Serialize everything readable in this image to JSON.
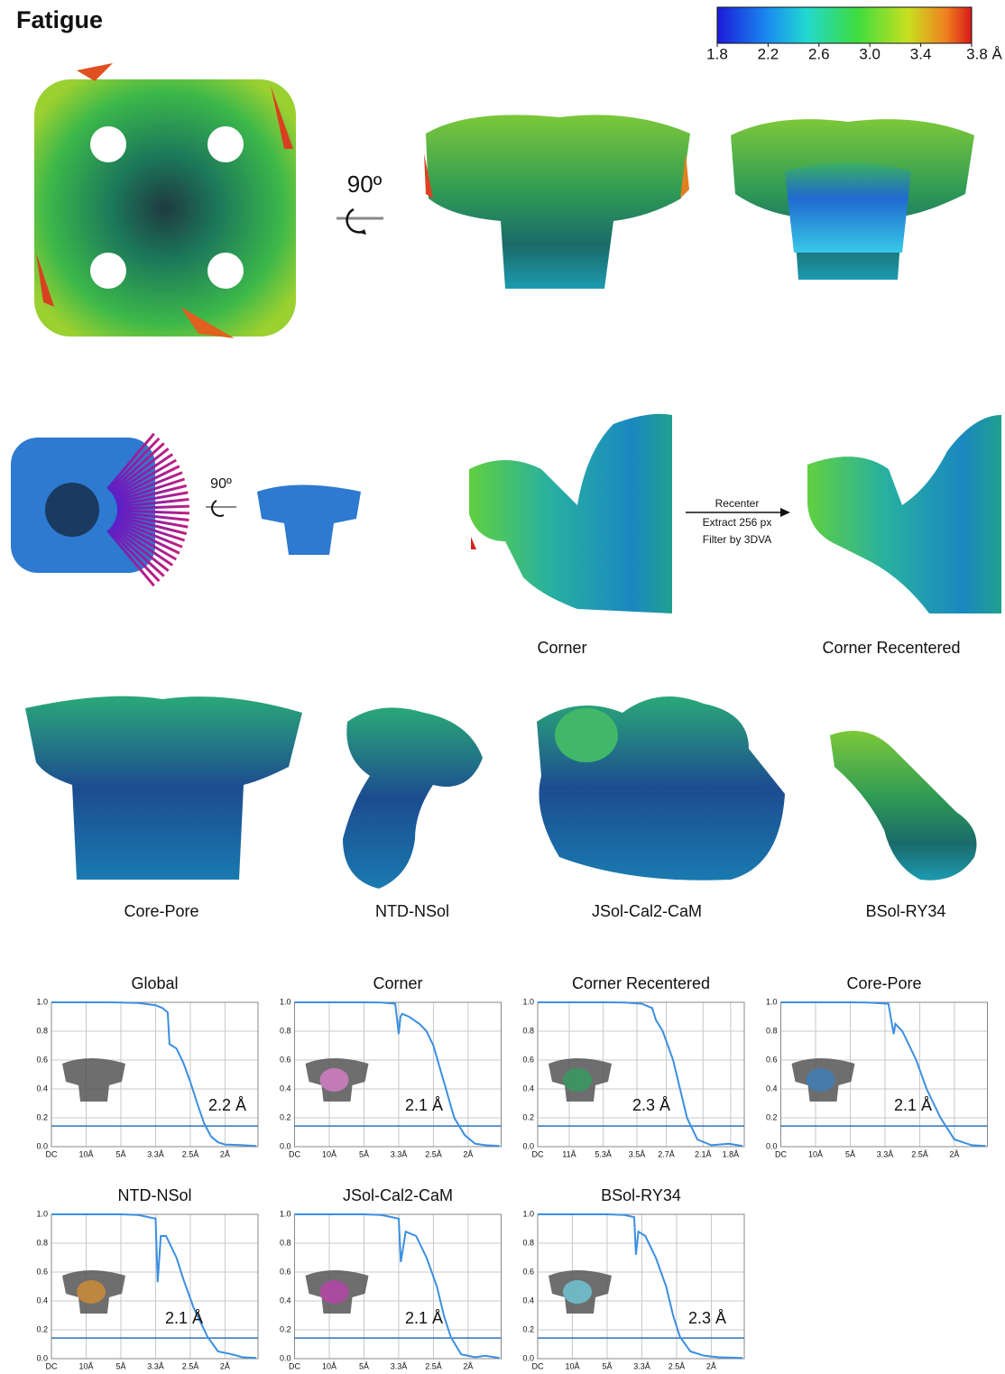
{
  "title": "Fatigue",
  "colorbar": {
    "lim": [
      1.8,
      3.8
    ],
    "ticks": [
      1.8,
      2.2,
      2.6,
      {
        "value": 3,
        "label": "3.0"
      },
      3.4,
      {
        "value": 3.8,
        "label": "3.8 Å"
      }
    ]
  },
  "rotation_labels": [
    "90º",
    "90º"
  ],
  "recenter_steps": [
    "Recenter",
    "Extract 256 px",
    "Filter by 3DVA"
  ],
  "map_labels": [
    "Corner",
    "Corner Recentered",
    "Core-Pore",
    "NTD-NSol",
    "JSol-Cal2-CaM",
    "BSol-RY34"
  ],
  "chart_data": [
    {
      "type": "line",
      "title": "Global",
      "annotation": "2.2 Å",
      "threshold": 0.143,
      "grid": true,
      "xlim": [
        0,
        0.595
      ],
      "ylim": [
        0,
        1
      ],
      "xticks": [
        {
          "value": 0,
          "label": "DC"
        },
        {
          "value": 0.1,
          "label": "10Å"
        },
        {
          "value": 0.2,
          "label": "5Å"
        },
        {
          "value": 0.3,
          "label": "3.3Å"
        },
        {
          "value": 0.4,
          "label": "2.5Å"
        },
        {
          "value": 0.5,
          "label": "2Å"
        }
      ],
      "yticks": [
        {
          "value": 0,
          "label": "0.0"
        },
        0.2,
        0.4,
        0.6,
        0.8,
        {
          "value": 1,
          "label": "1.0"
        }
      ],
      "x": [
        0,
        0.05,
        0.1,
        0.15,
        0.2,
        0.25,
        0.3,
        0.32,
        0.335,
        0.34,
        0.36,
        0.38,
        0.4,
        0.42,
        0.44,
        0.46,
        0.48,
        0.5,
        0.55,
        0.59
      ],
      "series": [
        {
          "color": "#3b8fe2",
          "values": [
            1,
            1,
            1,
            1,
            0.999,
            0.995,
            0.98,
            0.96,
            0.93,
            0.71,
            0.68,
            0.58,
            0.45,
            0.3,
            0.16,
            0.07,
            0.03,
            0.015,
            0.01,
            0.005
          ]
        }
      ]
    },
    {
      "type": "line",
      "title": "Corner",
      "annotation": "2.1 Å",
      "threshold": 0.143,
      "grid": true,
      "xlim": [
        0,
        0.595
      ],
      "ylim": [
        0,
        1
      ],
      "xticks": [
        {
          "value": 0,
          "label": "DC"
        },
        {
          "value": 0.1,
          "label": "10Å"
        },
        {
          "value": 0.2,
          "label": "5Å"
        },
        {
          "value": 0.3,
          "label": "3.3Å"
        },
        {
          "value": 0.4,
          "label": "2.5Å"
        },
        {
          "value": 0.5,
          "label": "2Å"
        }
      ],
      "yticks": [
        {
          "value": 0,
          "label": "0.0"
        },
        0.2,
        0.4,
        0.6,
        0.8,
        {
          "value": 1,
          "label": "1.0"
        }
      ],
      "x": [
        0,
        0.1,
        0.2,
        0.25,
        0.29,
        0.3,
        0.305,
        0.31,
        0.33,
        0.36,
        0.38,
        0.4,
        0.43,
        0.46,
        0.49,
        0.52,
        0.55,
        0.59
      ],
      "series": [
        {
          "color": "#3b8fe2",
          "values": [
            1,
            1,
            1,
            0.998,
            0.99,
            0.78,
            0.9,
            0.92,
            0.9,
            0.85,
            0.8,
            0.7,
            0.45,
            0.2,
            0.08,
            0.02,
            0.01,
            0.005
          ]
        }
      ]
    },
    {
      "type": "line",
      "title": "Corner Recentered",
      "annotation": "2.3 Å",
      "threshold": 0.143,
      "grid": true,
      "xlim": [
        0,
        0.595
      ],
      "ylim": [
        0,
        1
      ],
      "xticks": [
        {
          "value": 0,
          "label": "DC"
        },
        {
          "value": 0.0909,
          "label": "11Å"
        },
        {
          "value": 0.1887,
          "label": "5.3Å"
        },
        {
          "value": 0.2857,
          "label": "3.5Å"
        },
        {
          "value": 0.3704,
          "label": "2.7Å"
        },
        {
          "value": 0.4762,
          "label": "2.1Å"
        },
        {
          "value": 0.5556,
          "label": "1.8Å"
        }
      ],
      "yticks": [
        {
          "value": 0,
          "label": "0.0"
        },
        0.2,
        0.4,
        0.6,
        0.8,
        {
          "value": 1,
          "label": "1.0"
        }
      ],
      "x": [
        0,
        0.1,
        0.2,
        0.25,
        0.3,
        0.33,
        0.34,
        0.345,
        0.36,
        0.39,
        0.41,
        0.43,
        0.46,
        0.5,
        0.55,
        0.59
      ],
      "series": [
        {
          "color": "#3b8fe2",
          "values": [
            1,
            1,
            1,
            0.998,
            0.99,
            0.96,
            0.88,
            0.86,
            0.8,
            0.6,
            0.4,
            0.2,
            0.05,
            0.01,
            0.02,
            0.005
          ]
        }
      ]
    },
    {
      "type": "line",
      "title": "Core-Pore",
      "annotation": "2.1 Å",
      "threshold": 0.143,
      "grid": true,
      "xlim": [
        0,
        0.595
      ],
      "ylim": [
        0,
        1
      ],
      "xticks": [
        {
          "value": 0,
          "label": "DC"
        },
        {
          "value": 0.1,
          "label": "10Å"
        },
        {
          "value": 0.2,
          "label": "5Å"
        },
        {
          "value": 0.3,
          "label": "3.3Å"
        },
        {
          "value": 0.4,
          "label": "2.5Å"
        },
        {
          "value": 0.5,
          "label": "2Å"
        }
      ],
      "yticks": [
        {
          "value": 0,
          "label": "0.0"
        },
        0.2,
        0.4,
        0.6,
        0.8,
        {
          "value": 1,
          "label": "1.0"
        }
      ],
      "x": [
        0,
        0.1,
        0.2,
        0.25,
        0.31,
        0.325,
        0.33,
        0.35,
        0.39,
        0.42,
        0.46,
        0.5,
        0.55,
        0.59
      ],
      "series": [
        {
          "color": "#3b8fe2",
          "values": [
            1,
            1,
            1,
            0.998,
            0.99,
            0.78,
            0.85,
            0.8,
            0.6,
            0.4,
            0.2,
            0.05,
            0.01,
            0.005
          ]
        }
      ]
    },
    {
      "type": "line",
      "title": "NTD-NSol",
      "annotation": "2.1 Å",
      "threshold": 0.143,
      "grid": true,
      "xlim": [
        0,
        0.595
      ],
      "ylim": [
        0,
        1
      ],
      "xticks": [
        {
          "value": 0,
          "label": "DC"
        },
        {
          "value": 0.1,
          "label": "10Å"
        },
        {
          "value": 0.2,
          "label": "5Å"
        },
        {
          "value": 0.3,
          "label": "3.3Å"
        },
        {
          "value": 0.4,
          "label": "2.5Å"
        },
        {
          "value": 0.5,
          "label": "2Å"
        }
      ],
      "yticks": [
        {
          "value": 0,
          "label": "0.0"
        },
        0.2,
        0.4,
        0.6,
        0.8,
        {
          "value": 1,
          "label": "1.0"
        }
      ],
      "x": [
        0,
        0.1,
        0.2,
        0.25,
        0.3,
        0.306,
        0.315,
        0.33,
        0.36,
        0.38,
        0.41,
        0.45,
        0.48,
        0.52,
        0.55,
        0.59
      ],
      "series": [
        {
          "color": "#3b8fe2",
          "values": [
            1,
            1,
            1,
            0.995,
            0.97,
            0.53,
            0.85,
            0.85,
            0.7,
            0.55,
            0.35,
            0.15,
            0.05,
            0.03,
            0.01,
            0.005
          ]
        }
      ]
    },
    {
      "type": "line",
      "title": "JSol-Cal2-CaM",
      "annotation": "2.1 Å",
      "threshold": 0.143,
      "grid": true,
      "xlim": [
        0,
        0.595
      ],
      "ylim": [
        0,
        1
      ],
      "xticks": [
        {
          "value": 0,
          "label": "DC"
        },
        {
          "value": 0.1,
          "label": "10Å"
        },
        {
          "value": 0.2,
          "label": "5Å"
        },
        {
          "value": 0.3,
          "label": "3.3Å"
        },
        {
          "value": 0.4,
          "label": "2.5Å"
        },
        {
          "value": 0.5,
          "label": "2Å"
        }
      ],
      "yticks": [
        {
          "value": 0,
          "label": "0.0"
        },
        0.2,
        0.4,
        0.6,
        0.8,
        {
          "value": 1,
          "label": "1.0"
        }
      ],
      "x": [
        0,
        0.1,
        0.2,
        0.25,
        0.3,
        0.306,
        0.32,
        0.35,
        0.38,
        0.41,
        0.43,
        0.45,
        0.48,
        0.52,
        0.55,
        0.59
      ],
      "series": [
        {
          "color": "#3b8fe2",
          "values": [
            1,
            1,
            1,
            0.995,
            0.97,
            0.67,
            0.88,
            0.85,
            0.7,
            0.5,
            0.3,
            0.15,
            0.03,
            0.01,
            0.02,
            0.005
          ]
        }
      ]
    },
    {
      "type": "line",
      "title": "BSol-RY34",
      "annotation": "2.3 Å",
      "threshold": 0.143,
      "grid": true,
      "xlim": [
        0,
        0.595
      ],
      "ylim": [
        0,
        1
      ],
      "xticks": [
        {
          "value": 0,
          "label": "DC"
        },
        {
          "value": 0.1,
          "label": "10Å"
        },
        {
          "value": 0.2,
          "label": "5Å"
        },
        {
          "value": 0.3,
          "label": "3.3Å"
        },
        {
          "value": 0.4,
          "label": "2.5Å"
        },
        {
          "value": 0.5,
          "label": "2Å"
        }
      ],
      "yticks": [
        {
          "value": 0,
          "label": "0.0"
        },
        0.2,
        0.4,
        0.6,
        0.8,
        {
          "value": 1,
          "label": "1.0"
        }
      ],
      "x": [
        0,
        0.1,
        0.2,
        0.25,
        0.278,
        0.283,
        0.29,
        0.31,
        0.34,
        0.37,
        0.39,
        0.41,
        0.44,
        0.48,
        0.52,
        0.59
      ],
      "series": [
        {
          "color": "#3b8fe2",
          "values": [
            1,
            1,
            1,
            0.995,
            0.98,
            0.72,
            0.88,
            0.85,
            0.7,
            0.5,
            0.3,
            0.15,
            0.05,
            0.02,
            0.01,
            0.005
          ]
        }
      ]
    }
  ]
}
